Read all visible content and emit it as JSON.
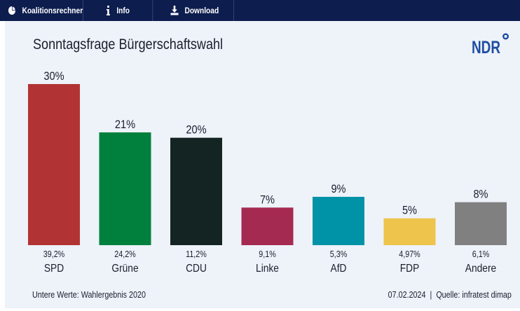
{
  "toolbar": {
    "coalition_label": "Koalitionsrechner",
    "info_label": "Info",
    "download_label": "Download",
    "bg_color": "#0d1d4e"
  },
  "logo_text": "NDR",
  "footer": {
    "note": "Untere Werte: Wahlergebnis 2020",
    "date": "07.02.2024",
    "separator": "|",
    "source": "Quelle: infratest dimap"
  },
  "chart_data": {
    "type": "bar",
    "title": "Sonntagsfrage Bürgerschaftswahl",
    "categories": [
      "SPD",
      "Grüne",
      "CDU",
      "Linke",
      "AfD",
      "FDP",
      "Andere"
    ],
    "values": [
      30,
      21,
      20,
      7,
      9,
      5,
      8
    ],
    "value_labels": [
      "30%",
      "21%",
      "20%",
      "7%",
      "9%",
      "5%",
      "8%"
    ],
    "previous_result_labels": [
      "39,2%",
      "24,2%",
      "11,2%",
      "9,1%",
      "5,3%",
      "4,97%",
      "6,1%"
    ],
    "colors": [
      "#b23333",
      "#00803c",
      "#132422",
      "#a52a52",
      "#0093a8",
      "#eec44d",
      "#808080"
    ],
    "ylim": [
      0,
      30
    ],
    "grid": false,
    "legend": "none"
  }
}
